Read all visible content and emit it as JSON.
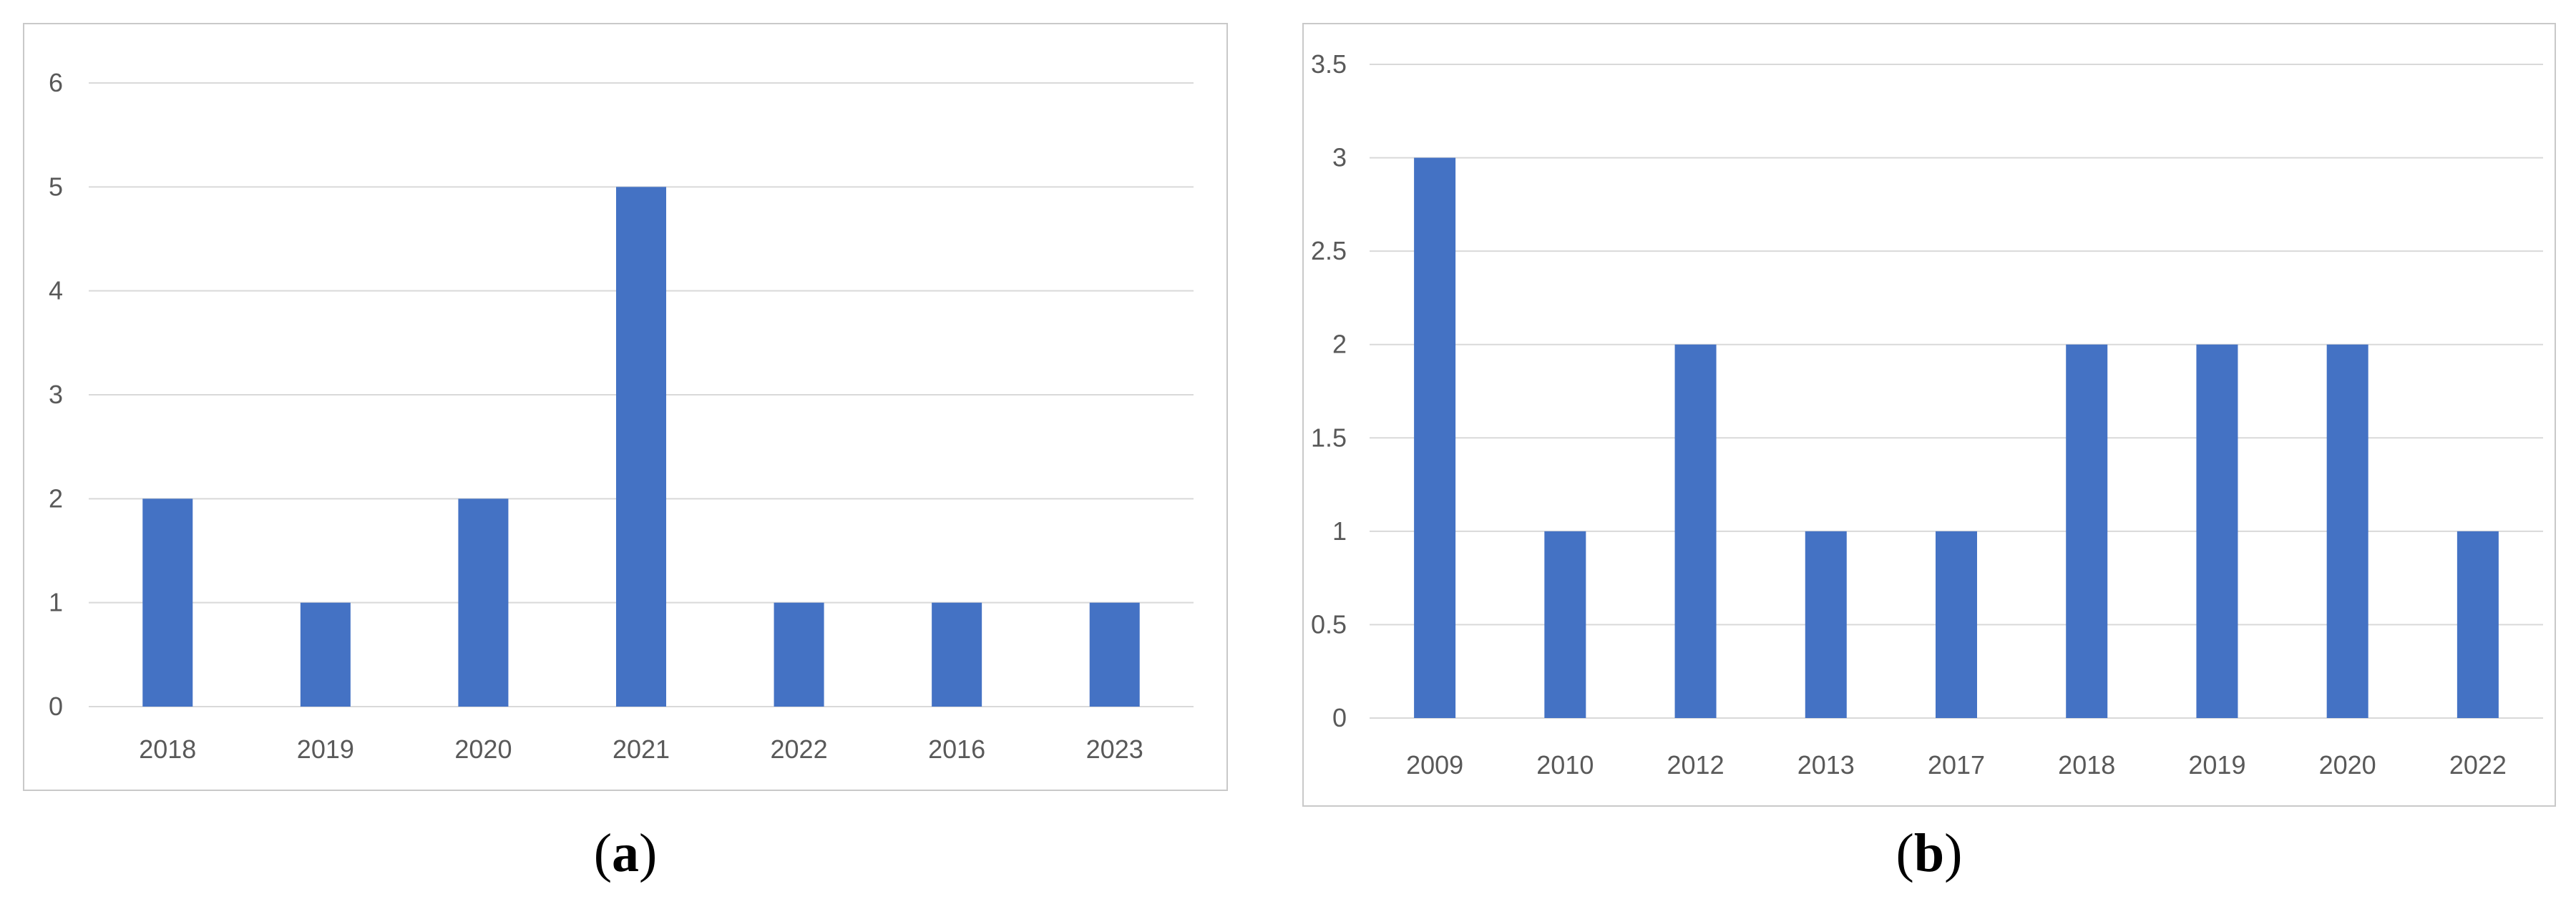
{
  "chart_data": [
    {
      "type": "bar",
      "panel_label": "a",
      "categories": [
        "2018",
        "2019",
        "2020",
        "2021",
        "2022",
        "2016",
        "2023"
      ],
      "values": [
        2,
        1,
        2,
        5,
        1,
        1,
        1
      ],
      "ylim": [
        0,
        6
      ],
      "yticks": [
        "0",
        "1",
        "2",
        "3",
        "4",
        "5",
        "6"
      ],
      "ytick_values": [
        0,
        1,
        2,
        3,
        4,
        5,
        6
      ],
      "grid": true,
      "legend": "none",
      "title": "",
      "xlabel": "",
      "ylabel": "",
      "bar_color": "#4472c4"
    },
    {
      "type": "bar",
      "panel_label": "b",
      "categories": [
        "2009",
        "2010",
        "2012",
        "2013",
        "2017",
        "2018",
        "2019",
        "2020",
        "2022"
      ],
      "values": [
        3,
        1,
        2,
        1,
        1,
        2,
        2,
        2,
        1
      ],
      "ylim": [
        0,
        3.5
      ],
      "yticks": [
        "0",
        "0.5",
        "1",
        "1.5",
        "2",
        "2.5",
        "3",
        "3.5"
      ],
      "ytick_values": [
        0,
        0.5,
        1,
        1.5,
        2,
        2.5,
        3,
        3.5
      ],
      "grid": true,
      "legend": "none",
      "title": "",
      "xlabel": "",
      "ylabel": "",
      "bar_color": "#4472c4"
    }
  ],
  "colors": {
    "gridline": "#d9d9d9",
    "axis_text": "#595959",
    "panel_border": "#c9c9c9"
  }
}
